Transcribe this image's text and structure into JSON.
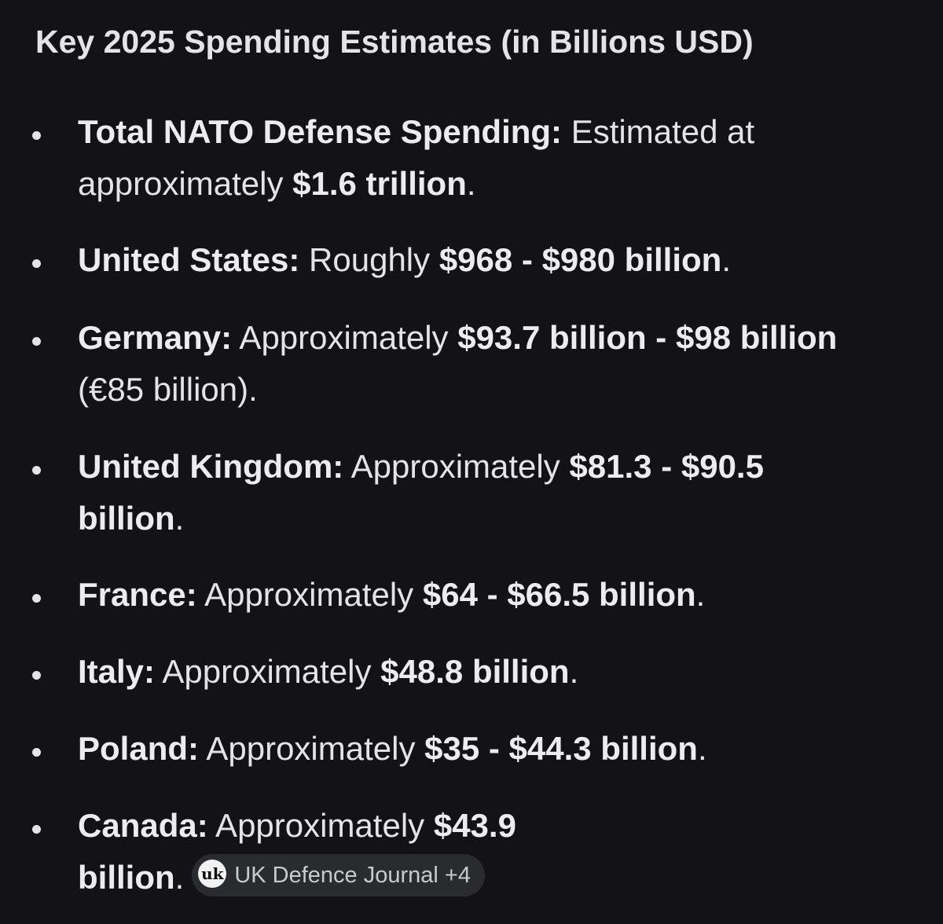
{
  "heading": "Key 2025 Spending Estimates (in Billions USD)",
  "items": [
    {
      "label": "Total NATO Defense Spending:",
      "pre": " Estimated at approximately ",
      "value": "$1.6 trillion",
      "post": "."
    },
    {
      "label": "United States:",
      "pre": " Roughly ",
      "value": "$968 - $980 billion",
      "post": "."
    },
    {
      "label": "Germany:",
      "pre": " Approximately ",
      "value": "$93.7 billion - $98 billion",
      "post": " (€85 billion)."
    },
    {
      "label": "United Kingdom:",
      "pre": " Approximately ",
      "value": "$81.3 - $90.5 billion",
      "post": "."
    },
    {
      "label": "France:",
      "pre": " Approximately ",
      "value": "$64 - $66.5 billion",
      "post": "."
    },
    {
      "label": "Italy:",
      "pre": " Approximately ",
      "value": "$48.8 billion",
      "post": "."
    },
    {
      "label": "Poland:",
      "pre": " Approximately ",
      "value": "$35 - $44.3 billion",
      "post": "."
    },
    {
      "label": "Canada:",
      "pre": " Approximately ",
      "value": "$43.9",
      "value2": "billion",
      "post": "."
    }
  ],
  "source_chip": {
    "logo_text": "uk",
    "label": "UK Defence Journal +4"
  }
}
